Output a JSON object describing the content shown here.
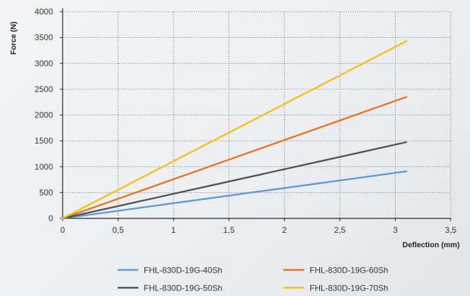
{
  "chart_data": {
    "type": "line",
    "title": "",
    "xlabel": "Deflection (mm)",
    "ylabel": "Force (N)",
    "xlim": [
      0,
      3.5
    ],
    "ylim": [
      0,
      4000
    ],
    "x_ticks": [
      0,
      0.5,
      1,
      1.5,
      2,
      2.5,
      3,
      3.5
    ],
    "x_tick_labels": [
      "0",
      "0,5",
      "1",
      "1,5",
      "2",
      "2,5",
      "3",
      "3,5"
    ],
    "y_ticks": [
      0,
      500,
      1000,
      1500,
      2000,
      2500,
      3000,
      3500,
      4000
    ],
    "y_tick_labels": [
      "0",
      "500",
      "1000",
      "1500",
      "2000",
      "2500",
      "3000",
      "3500",
      "4000"
    ],
    "grid": "dotted",
    "legend_position": "bottom",
    "series": [
      {
        "name": "FHL-830D-19G-40Sh",
        "color": "#5b9bd5",
        "x": [
          0,
          3.1
        ],
        "y": [
          0,
          910
        ]
      },
      {
        "name": "FHL-830D-19G-60Sh",
        "color": "#e8721c",
        "x": [
          0,
          3.1
        ],
        "y": [
          0,
          2350
        ]
      },
      {
        "name": "FHL-830D-19G-50Sh",
        "color": "#4d5258",
        "x": [
          0,
          3.1
        ],
        "y": [
          0,
          1475
        ]
      },
      {
        "name": "FHL-830D-19G-70Sh",
        "color": "#f2bf1c",
        "x": [
          0,
          3.1
        ],
        "y": [
          0,
          3430
        ]
      }
    ]
  }
}
